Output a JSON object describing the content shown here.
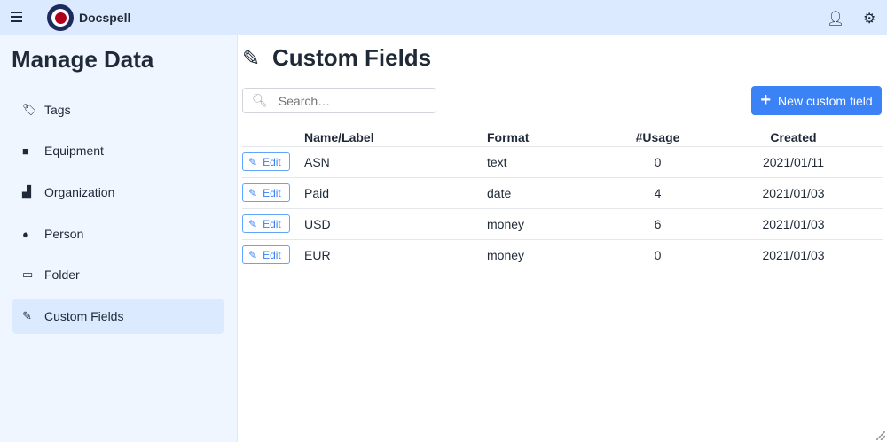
{
  "app": {
    "title": "Docspell"
  },
  "sidebar": {
    "title": "Manage Data",
    "items": [
      {
        "label": "Tags",
        "icon": "tag-icon"
      },
      {
        "label": "Equipment",
        "icon": "box-icon"
      },
      {
        "label": "Organization",
        "icon": "industry-icon"
      },
      {
        "label": "Person",
        "icon": "user-icon"
      },
      {
        "label": "Folder",
        "icon": "folder-icon"
      },
      {
        "label": "Custom Fields",
        "icon": "highlighter-icon",
        "active": true
      }
    ]
  },
  "main": {
    "title": "Custom Fields",
    "search": {
      "placeholder": "Search…",
      "value": ""
    },
    "new_button": "New custom field",
    "columns": [
      "Name/Label",
      "Format",
      "#Usage",
      "Created"
    ],
    "edit_label": "Edit",
    "rows": [
      {
        "name": "ASN",
        "format": "text",
        "usage": "0",
        "created": "2021/01/11"
      },
      {
        "name": "Paid",
        "format": "date",
        "usage": "4",
        "created": "2021/01/03"
      },
      {
        "name": "USD",
        "format": "money",
        "usage": "6",
        "created": "2021/01/03"
      },
      {
        "name": "EUR",
        "format": "money",
        "usage": "0",
        "created": "2021/01/03"
      }
    ]
  },
  "colors": {
    "accent": "#3b82f6",
    "topbar": "#dbeafe",
    "sidebar": "#eff6ff"
  }
}
